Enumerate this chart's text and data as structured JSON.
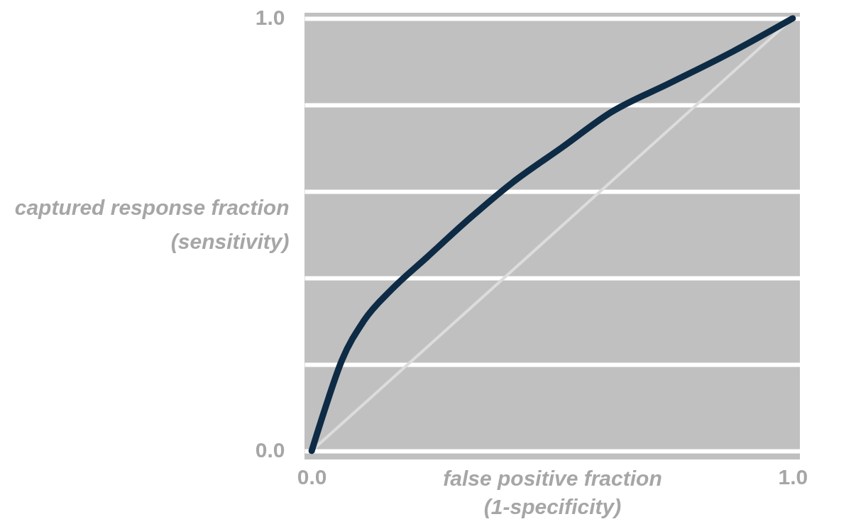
{
  "chart_data": {
    "type": "line",
    "xlabel": "false positive fraction\n(1-specificity)",
    "ylabel": "captured response fraction\n(sensitivity)",
    "xlim": [
      -0.015,
      1.015
    ],
    "ylim": [
      -0.02,
      1.013
    ],
    "xticks": [
      {
        "value": 0,
        "label": "0.0"
      },
      {
        "value": 1,
        "label": "1.0"
      }
    ],
    "yticks": [
      {
        "value": 0,
        "label": "0.0"
      },
      {
        "value": 0.2,
        "label": null
      },
      {
        "value": 0.4,
        "label": null
      },
      {
        "value": 0.6,
        "label": null
      },
      {
        "value": 0.8,
        "label": null
      },
      {
        "value": 1,
        "label": "1.0"
      }
    ],
    "grid": "y",
    "marker": "none",
    "line_style": "solid",
    "series": [
      {
        "color": "#dcdcdc",
        "x": [
          0,
          1
        ],
        "values": [
          0,
          1
        ]
      },
      {
        "color": "#0e2b45",
        "x": [
          0,
          0.027,
          0.063,
          0.108,
          0.167,
          0.24,
          0.329,
          0.417,
          0.521,
          0.624,
          0.742,
          0.875,
          1
        ],
        "values": [
          0,
          0.095,
          0.21,
          0.3,
          0.374,
          0.448,
          0.538,
          0.62,
          0.702,
          0.784,
          0.849,
          0.923,
          1
        ]
      }
    ]
  }
}
